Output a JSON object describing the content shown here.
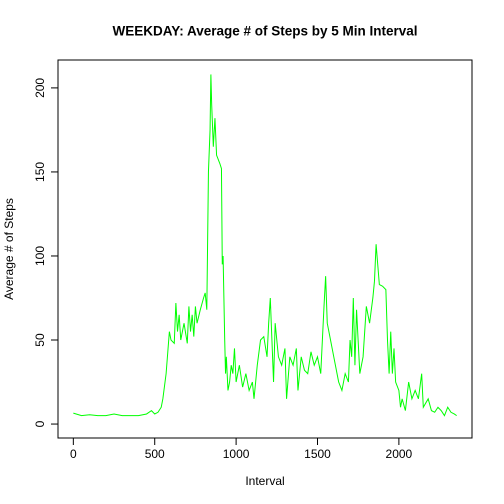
{
  "chart_data": {
    "type": "line",
    "title": "WEEKDAY: Average # of Steps by 5 Min Interval",
    "x_label": "Interval",
    "y_label": "Average # of Steps",
    "color": "#00ff00",
    "x": [
      0,
      50,
      100,
      150,
      200,
      250,
      300,
      350,
      400,
      450,
      480,
      500,
      520,
      540,
      550,
      570,
      590,
      600,
      620,
      630,
      640,
      650,
      660,
      680,
      700,
      710,
      720,
      730,
      740,
      750,
      760,
      780,
      800,
      810,
      820,
      830,
      840,
      845,
      850,
      860,
      870,
      880,
      900,
      910,
      915,
      920,
      925,
      930,
      935,
      940,
      950,
      960,
      970,
      980,
      990,
      1000,
      1020,
      1040,
      1060,
      1080,
      1100,
      1110,
      1130,
      1150,
      1170,
      1190,
      1200,
      1210,
      1220,
      1230,
      1240,
      1260,
      1280,
      1300,
      1310,
      1330,
      1350,
      1370,
      1380,
      1400,
      1420,
      1440,
      1460,
      1480,
      1500,
      1520,
      1530,
      1540,
      1550,
      1560,
      1580,
      1600,
      1620,
      1630,
      1650,
      1670,
      1690,
      1700,
      1710,
      1720,
      1730,
      1740,
      1760,
      1780,
      1800,
      1820,
      1840,
      1850,
      1860,
      1870,
      1880,
      1900,
      1920,
      1930,
      1940,
      1950,
      1960,
      1970,
      1980,
      2000,
      2010,
      2020,
      2040,
      2060,
      2080,
      2100,
      2120,
      2140,
      2150,
      2180,
      2200,
      2220,
      2240,
      2260,
      2280,
      2300,
      2320,
      2340,
      2355
    ],
    "values": [
      6.5,
      5,
      5.5,
      5,
      5,
      6,
      5,
      5,
      5,
      6,
      8,
      6,
      7,
      10,
      15,
      30,
      55,
      50,
      48,
      72,
      55,
      65,
      50,
      60,
      48,
      70,
      55,
      65,
      52,
      70,
      60,
      68,
      75,
      78,
      68,
      150,
      175,
      208,
      190,
      165,
      182,
      160,
      155,
      152,
      95,
      100,
      75,
      50,
      30,
      40,
      20,
      25,
      35,
      30,
      45,
      25,
      35,
      22,
      30,
      20,
      25,
      15,
      35,
      50,
      52,
      40,
      60,
      75,
      50,
      25,
      60,
      40,
      35,
      45,
      15,
      40,
      35,
      45,
      20,
      40,
      32,
      30,
      43,
      35,
      40,
      30,
      50,
      70,
      88,
      60,
      50,
      40,
      30,
      25,
      20,
      30,
      25,
      50,
      40,
      75,
      35,
      68,
      30,
      40,
      70,
      60,
      75,
      85,
      107,
      95,
      83,
      82,
      80,
      50,
      30,
      55,
      30,
      45,
      25,
      20,
      10,
      15,
      8,
      25,
      15,
      20,
      15,
      30,
      10,
      15,
      8,
      7,
      10,
      8,
      5,
      10,
      7,
      6,
      5
    ],
    "xlim": [
      -94.2,
      2449.2
    ],
    "ylim": [
      -8.3,
      216.6
    ],
    "xticks": [
      0,
      500,
      1000,
      1500,
      2000
    ],
    "yticks": [
      0,
      50,
      100,
      150,
      200
    ]
  }
}
